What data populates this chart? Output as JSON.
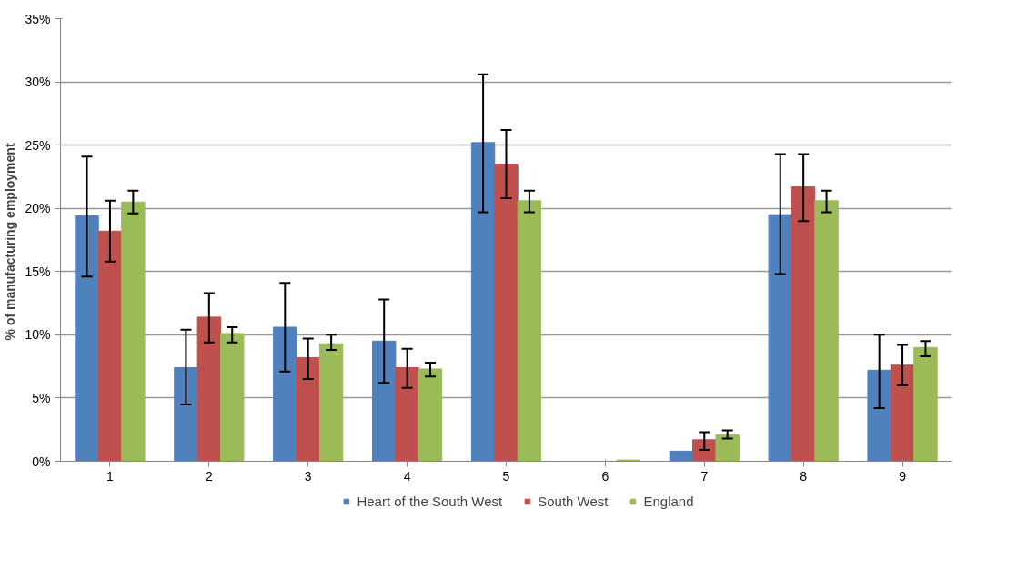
{
  "chart_data": {
    "type": "bar",
    "ylabel": "% of manufacturing  employment",
    "categories": [
      "1",
      "2",
      "3",
      "4",
      "5",
      "6",
      "7",
      "8",
      "9"
    ],
    "series": [
      {
        "name": "Heart of the South West",
        "color": "#4f81bd",
        "values": [
          19.4,
          7.4,
          10.6,
          9.5,
          25.2,
          0,
          0.8,
          19.5,
          7.2
        ],
        "errors": [
          [
            14.6,
            24.1
          ],
          [
            4.5,
            10.4
          ],
          [
            7.1,
            14.1
          ],
          [
            6.2,
            12.8
          ],
          [
            19.7,
            30.6
          ],
          null,
          null,
          [
            14.8,
            24.3
          ],
          [
            4.2,
            10.0
          ]
        ]
      },
      {
        "name": "South West",
        "color": "#c0504d",
        "values": [
          18.2,
          11.4,
          8.2,
          7.4,
          23.5,
          0,
          1.7,
          21.7,
          7.6
        ],
        "errors": [
          [
            15.8,
            20.6
          ],
          [
            9.4,
            13.3
          ],
          [
            6.5,
            9.7
          ],
          [
            5.8,
            8.9
          ],
          [
            20.8,
            26.2
          ],
          null,
          [
            0.9,
            2.3
          ],
          [
            19.0,
            24.3
          ],
          [
            6.0,
            9.2
          ]
        ]
      },
      {
        "name": "England",
        "color": "#9bbb59",
        "values": [
          20.5,
          10.1,
          9.3,
          7.3,
          20.6,
          0.1,
          2.1,
          20.6,
          9.0
        ],
        "errors": [
          [
            19.6,
            21.4
          ],
          [
            9.4,
            10.6
          ],
          [
            8.8,
            10.0
          ],
          [
            6.7,
            7.8
          ],
          [
            19.7,
            21.4
          ],
          null,
          [
            1.8,
            2.45
          ],
          [
            19.7,
            21.4
          ],
          [
            8.3,
            9.5
          ]
        ]
      }
    ],
    "ylim": [
      0,
      35
    ],
    "yticks": [
      {
        "value": 0,
        "label": "0%"
      },
      {
        "value": 5,
        "label": "5%"
      },
      {
        "value": 10,
        "label": "10%"
      },
      {
        "value": 15,
        "label": "15%"
      },
      {
        "value": 20,
        "label": "20%"
      },
      {
        "value": 25,
        "label": "25%"
      },
      {
        "value": 30,
        "label": "30%"
      },
      {
        "value": 35,
        "label": "35%"
      }
    ],
    "grid": "y",
    "legend": "bottom"
  }
}
